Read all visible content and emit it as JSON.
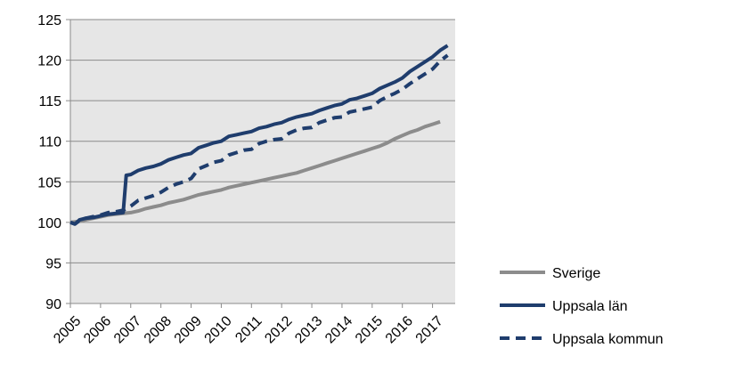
{
  "chart_data": {
    "type": "line",
    "title": "",
    "xlabel": "",
    "ylabel": "",
    "ylim": [
      90,
      125
    ],
    "yticks": [
      90,
      95,
      100,
      105,
      110,
      115,
      120,
      125
    ],
    "x_tick_labels": [
      "2005",
      "2006",
      "2007",
      "2008",
      "2009",
      "2010",
      "2011",
      "2012",
      "2013",
      "2014",
      "2015",
      "2016",
      "2017"
    ],
    "xlim": [
      2005.0,
      2017.75
    ],
    "grid": "horizontal",
    "plot_background": "#e6e6e6",
    "legend_position": "right",
    "series": [
      {
        "name": "Sverige",
        "color": "#8c8c8c",
        "dash": "solid",
        "points": [
          [
            2005.0,
            100.0
          ],
          [
            2005.25,
            100.1
          ],
          [
            2005.5,
            100.3
          ],
          [
            2005.75,
            100.5
          ],
          [
            2006.0,
            100.7
          ],
          [
            2006.25,
            100.9
          ],
          [
            2006.5,
            101.0
          ],
          [
            2006.75,
            101.1
          ],
          [
            2007.0,
            101.2
          ],
          [
            2007.25,
            101.4
          ],
          [
            2007.5,
            101.7
          ],
          [
            2007.75,
            101.9
          ],
          [
            2008.0,
            102.1
          ],
          [
            2008.25,
            102.4
          ],
          [
            2008.5,
            102.6
          ],
          [
            2008.75,
            102.8
          ],
          [
            2009.0,
            103.1
          ],
          [
            2009.25,
            103.4
          ],
          [
            2009.5,
            103.6
          ],
          [
            2009.75,
            103.8
          ],
          [
            2010.0,
            104.0
          ],
          [
            2010.25,
            104.3
          ],
          [
            2010.5,
            104.5
          ],
          [
            2010.75,
            104.7
          ],
          [
            2011.0,
            104.9
          ],
          [
            2011.25,
            105.1
          ],
          [
            2011.5,
            105.3
          ],
          [
            2011.75,
            105.5
          ],
          [
            2012.0,
            105.7
          ],
          [
            2012.25,
            105.9
          ],
          [
            2012.5,
            106.1
          ],
          [
            2012.75,
            106.4
          ],
          [
            2013.0,
            106.7
          ],
          [
            2013.25,
            107.0
          ],
          [
            2013.5,
            107.3
          ],
          [
            2013.75,
            107.6
          ],
          [
            2014.0,
            107.9
          ],
          [
            2014.25,
            108.2
          ],
          [
            2014.5,
            108.5
          ],
          [
            2014.75,
            108.8
          ],
          [
            2015.0,
            109.1
          ],
          [
            2015.25,
            109.4
          ],
          [
            2015.5,
            109.8
          ],
          [
            2015.75,
            110.3
          ],
          [
            2016.0,
            110.7
          ],
          [
            2016.25,
            111.1
          ],
          [
            2016.5,
            111.4
          ],
          [
            2016.75,
            111.8
          ],
          [
            2017.0,
            112.1
          ],
          [
            2017.25,
            112.4
          ]
        ]
      },
      {
        "name": "Uppsala län",
        "color": "#1f3d6d",
        "dash": "solid",
        "points": [
          [
            2005.0,
            100.0
          ],
          [
            2005.15,
            99.8
          ],
          [
            2005.3,
            100.3
          ],
          [
            2005.5,
            100.5
          ],
          [
            2005.75,
            100.6
          ],
          [
            2006.0,
            100.8
          ],
          [
            2006.25,
            101.0
          ],
          [
            2006.5,
            101.1
          ],
          [
            2006.75,
            101.2
          ],
          [
            2006.85,
            105.8
          ],
          [
            2007.0,
            105.9
          ],
          [
            2007.25,
            106.4
          ],
          [
            2007.5,
            106.7
          ],
          [
            2007.75,
            106.9
          ],
          [
            2008.0,
            107.2
          ],
          [
            2008.25,
            107.7
          ],
          [
            2008.5,
            108.0
          ],
          [
            2008.75,
            108.3
          ],
          [
            2009.0,
            108.5
          ],
          [
            2009.25,
            109.2
          ],
          [
            2009.5,
            109.5
          ],
          [
            2009.75,
            109.8
          ],
          [
            2010.0,
            110.0
          ],
          [
            2010.25,
            110.6
          ],
          [
            2010.5,
            110.8
          ],
          [
            2010.75,
            111.0
          ],
          [
            2011.0,
            111.2
          ],
          [
            2011.25,
            111.6
          ],
          [
            2011.5,
            111.8
          ],
          [
            2011.75,
            112.1
          ],
          [
            2012.0,
            112.3
          ],
          [
            2012.25,
            112.7
          ],
          [
            2012.5,
            113.0
          ],
          [
            2012.75,
            113.2
          ],
          [
            2013.0,
            113.4
          ],
          [
            2013.25,
            113.8
          ],
          [
            2013.5,
            114.1
          ],
          [
            2013.75,
            114.4
          ],
          [
            2014.0,
            114.6
          ],
          [
            2014.25,
            115.1
          ],
          [
            2014.5,
            115.3
          ],
          [
            2014.75,
            115.6
          ],
          [
            2015.0,
            115.9
          ],
          [
            2015.25,
            116.5
          ],
          [
            2015.5,
            116.9
          ],
          [
            2015.75,
            117.3
          ],
          [
            2016.0,
            117.8
          ],
          [
            2016.25,
            118.6
          ],
          [
            2016.5,
            119.2
          ],
          [
            2016.75,
            119.8
          ],
          [
            2017.0,
            120.4
          ],
          [
            2017.25,
            121.2
          ],
          [
            2017.5,
            121.8
          ]
        ]
      },
      {
        "name": "Uppsala kommun",
        "color": "#1f3d6d",
        "dash": "dashed",
        "points": [
          [
            2005.0,
            100.0
          ],
          [
            2005.15,
            99.8
          ],
          [
            2005.3,
            100.2
          ],
          [
            2005.5,
            100.5
          ],
          [
            2005.75,
            100.7
          ],
          [
            2006.0,
            100.9
          ],
          [
            2006.25,
            101.2
          ],
          [
            2006.5,
            101.3
          ],
          [
            2006.75,
            101.5
          ],
          [
            2007.0,
            102.0
          ],
          [
            2007.25,
            102.7
          ],
          [
            2007.5,
            103.0
          ],
          [
            2007.75,
            103.3
          ],
          [
            2008.0,
            103.7
          ],
          [
            2008.25,
            104.3
          ],
          [
            2008.5,
            104.7
          ],
          [
            2008.75,
            105.0
          ],
          [
            2009.0,
            105.4
          ],
          [
            2009.25,
            106.6
          ],
          [
            2009.5,
            107.0
          ],
          [
            2009.75,
            107.4
          ],
          [
            2010.0,
            107.6
          ],
          [
            2010.25,
            108.3
          ],
          [
            2010.5,
            108.6
          ],
          [
            2010.75,
            108.9
          ],
          [
            2011.0,
            109.0
          ],
          [
            2011.25,
            109.7
          ],
          [
            2011.5,
            110.0
          ],
          [
            2011.75,
            110.2
          ],
          [
            2012.0,
            110.3
          ],
          [
            2012.25,
            111.0
          ],
          [
            2012.5,
            111.4
          ],
          [
            2012.75,
            111.6
          ],
          [
            2013.0,
            111.7
          ],
          [
            2013.25,
            112.3
          ],
          [
            2013.5,
            112.6
          ],
          [
            2013.75,
            112.9
          ],
          [
            2014.0,
            113.0
          ],
          [
            2014.25,
            113.6
          ],
          [
            2014.5,
            113.8
          ],
          [
            2014.75,
            114.0
          ],
          [
            2015.0,
            114.2
          ],
          [
            2015.25,
            115.0
          ],
          [
            2015.5,
            115.5
          ],
          [
            2015.75,
            115.9
          ],
          [
            2016.0,
            116.4
          ],
          [
            2016.25,
            117.1
          ],
          [
            2016.5,
            117.7
          ],
          [
            2016.75,
            118.3
          ],
          [
            2017.0,
            118.9
          ],
          [
            2017.25,
            119.9
          ],
          [
            2017.5,
            120.6
          ]
        ]
      }
    ]
  }
}
